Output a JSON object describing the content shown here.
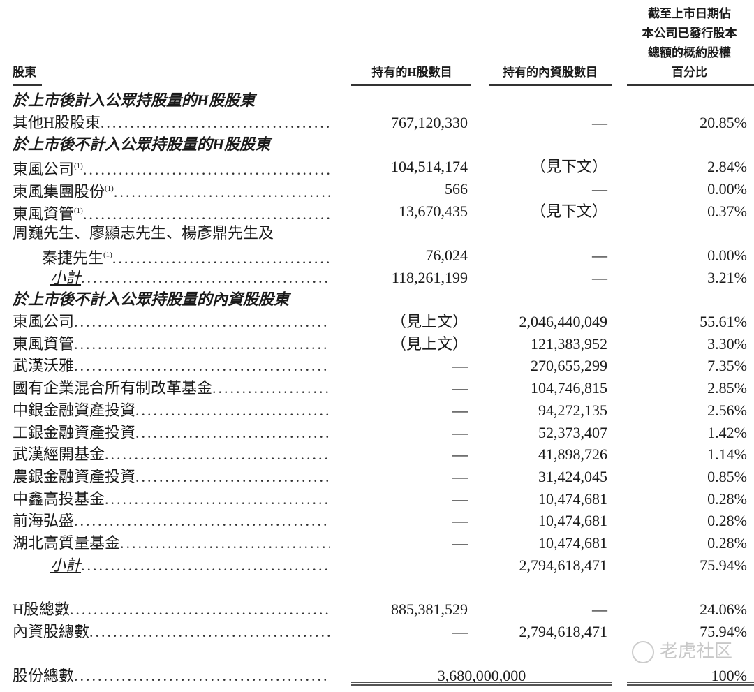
{
  "header": {
    "shareholder": "股東",
    "h_shares": "持有的H股數目",
    "domestic_shares": "持有的內資股數目",
    "percentage_lines": [
      "截至上市日期佔",
      "本公司已發行股本",
      "總額的概約股權",
      "百分比"
    ]
  },
  "rows": [
    {
      "type": "section",
      "label": "於上市後計入公眾持股量的H股股東"
    },
    {
      "type": "row",
      "label": "其他H股股東",
      "h": "767,120,330",
      "d": "—",
      "p": "20.85%"
    },
    {
      "type": "section",
      "label": "於上市後不計入公眾持股量的H股股東"
    },
    {
      "type": "row",
      "label": "東風公司",
      "sup": "(1)",
      "h": "104,514,174",
      "d": "（見下文）",
      "p": "2.84%"
    },
    {
      "type": "row",
      "label": "東風集團股份",
      "sup": "(1)",
      "h": "566",
      "d": "—",
      "p": "0.00%"
    },
    {
      "type": "row",
      "label": "東風資管",
      "sup": "(1)",
      "h": "13,670,435",
      "d": "（見下文）",
      "p": "0.37%"
    },
    {
      "type": "plain",
      "label": "周巍先生、廖顯志先生、楊彥鼎先生及"
    },
    {
      "type": "indent",
      "label": "秦捷先生",
      "sup": "(1)",
      "h": "76,024",
      "d": "—",
      "p": "0.00%"
    },
    {
      "type": "subtotal",
      "label": "小計",
      "h": "118,261,199",
      "d": "—",
      "p": "3.21%"
    },
    {
      "type": "section",
      "label": "於上市後不計入公眾持股量的內資股股東"
    },
    {
      "type": "row",
      "label": "東風公司",
      "h": "（見上文）",
      "d": "2,046,440,049",
      "p": "55.61%"
    },
    {
      "type": "row",
      "label": "東風資管",
      "h": "（見上文）",
      "d": "121,383,952",
      "p": "3.30%"
    },
    {
      "type": "row",
      "label": "武漢沃雅",
      "h": "—",
      "d": "270,655,299",
      "p": "7.35%"
    },
    {
      "type": "row",
      "label": "國有企業混合所有制改革基金",
      "h": "—",
      "d": "104,746,815",
      "p": "2.85%"
    },
    {
      "type": "row",
      "label": "中銀金融資產投資",
      "h": "—",
      "d": "94,272,135",
      "p": "2.56%"
    },
    {
      "type": "row",
      "label": "工銀金融資產投資",
      "h": "—",
      "d": "52,373,407",
      "p": "1.42%"
    },
    {
      "type": "row",
      "label": "武漢經開基金",
      "h": "—",
      "d": "41,898,726",
      "p": "1.14%"
    },
    {
      "type": "row",
      "label": "農銀金融資產投資",
      "h": "—",
      "d": "31,424,045",
      "p": "0.85%"
    },
    {
      "type": "row",
      "label": "中鑫高投基金",
      "h": "—",
      "d": "10,474,681",
      "p": "0.28%"
    },
    {
      "type": "row",
      "label": "前海弘盛",
      "h": "—",
      "d": "10,474,681",
      "p": "0.28%"
    },
    {
      "type": "row",
      "label": "湖北高質量基金",
      "h": "—",
      "d": "10,474,681",
      "p": "0.28%"
    },
    {
      "type": "subtotal",
      "label": "小計",
      "d": "2,794,618,471",
      "p": "75.94%"
    },
    {
      "type": "blank"
    },
    {
      "type": "row",
      "label": "H股總數",
      "h": "885,381,529",
      "d": "—",
      "p": "24.06%"
    },
    {
      "type": "row",
      "label": "內資股總數",
      "h": "—",
      "d": "2,794,618,471",
      "p": "75.94%"
    },
    {
      "type": "blank"
    },
    {
      "type": "total",
      "label": "股份總數",
      "total": "3,680,000,000",
      "p": "100%"
    }
  ],
  "dot_leader": "..................................................",
  "watermark": "老虎社区"
}
